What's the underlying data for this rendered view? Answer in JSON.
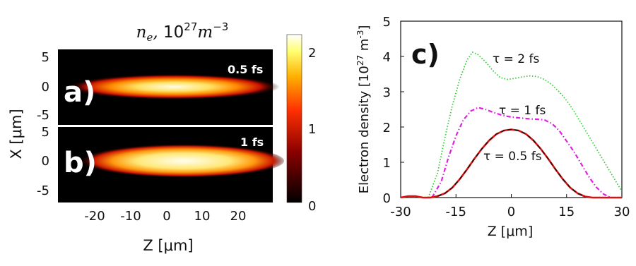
{
  "chart_data": [
    {
      "type": "heatmap",
      "title": "n_e, 10^27 m^-3",
      "title_parts": {
        "var": "n",
        "sub": "e",
        "sep": ", ",
        "base": "10",
        "exp": "27",
        "unit": "m",
        "unit_exp": "−3"
      },
      "xlabel": "Z [μm]",
      "ylabel": "X [μm]",
      "xlim": [
        -25,
        25
      ],
      "x_ticks": [
        "-20",
        "-10",
        "0",
        "10",
        "20"
      ],
      "colormap": "hot",
      "colorbar": {
        "ticks": [
          "0",
          "1",
          "2"
        ],
        "range": [
          0,
          2.2
        ]
      },
      "panels": [
        {
          "label": "a)",
          "annotation": "0.5 fs",
          "ylim": [
            -6,
            6
          ],
          "y_ticks": [
            "5",
            "0",
            "-5"
          ],
          "beam": {
            "z_start": -17,
            "z_end": 18,
            "half_width_um": 1.2,
            "peak": 2.2
          }
        },
        {
          "label": "b)",
          "annotation": "1 fs",
          "ylim": [
            -6,
            6
          ],
          "y_ticks": [
            "5",
            "0",
            "-5"
          ],
          "beam": {
            "z_start": -20,
            "z_end": 24,
            "half_width_um": 2.0,
            "peak": 2.2
          }
        }
      ]
    },
    {
      "type": "line",
      "panel_label": "c)",
      "xlabel": "Z [μm]",
      "ylabel_text": "Electron density [10",
      "ylabel_exp": "27",
      "ylabel_unit": " m",
      "ylabel_unit_exp": "-3",
      "ylabel_close": "]",
      "xlim": [
        -30,
        30
      ],
      "ylim": [
        0,
        5
      ],
      "x_ticks": [
        "-30",
        "-15",
        "0",
        "15",
        "30"
      ],
      "y_ticks": [
        "0",
        "1",
        "2",
        "3",
        "4",
        "5"
      ],
      "x_tick_values": [
        -30,
        -15,
        0,
        15,
        30
      ],
      "y_tick_values": [
        0,
        1,
        2,
        3,
        4,
        5
      ],
      "series": [
        {
          "name": "τ = 2 fs",
          "color": "#33cc33",
          "style": "dotted",
          "x": [
            -22.5,
            -20,
            -18,
            -16,
            -14,
            -12,
            -10.5,
            -9,
            -7,
            -5,
            -3,
            -1,
            1,
            3,
            5,
            7,
            9,
            11,
            13,
            15,
            17,
            19,
            21,
            23,
            25,
            27,
            29,
            30
          ],
          "y": [
            0,
            0.7,
            1.7,
            2.6,
            3.35,
            3.9,
            4.12,
            4.05,
            3.85,
            3.6,
            3.4,
            3.35,
            3.38,
            3.42,
            3.45,
            3.43,
            3.35,
            3.2,
            3.0,
            2.75,
            2.45,
            2.1,
            1.75,
            1.4,
            1.05,
            0.7,
            0.35,
            0.18
          ]
        },
        {
          "name": "τ = 1 fs",
          "color": "#e020e0",
          "style": "dashdot",
          "x": [
            -21.5,
            -19,
            -17,
            -15,
            -13,
            -11,
            -9,
            -7,
            -5,
            -3,
            -1,
            1,
            3,
            5,
            7,
            9,
            11,
            13,
            15,
            17,
            19,
            21,
            23,
            25,
            27
          ],
          "y": [
            0,
            0.45,
            1.15,
            1.75,
            2.2,
            2.45,
            2.55,
            2.5,
            2.42,
            2.35,
            2.3,
            2.27,
            2.25,
            2.23,
            2.22,
            2.2,
            2.1,
            1.9,
            1.6,
            1.3,
            0.95,
            0.6,
            0.3,
            0.1,
            0
          ]
        },
        {
          "name": "τ = 0.5 fs",
          "color": "#dd1111",
          "style": "solid",
          "x": [
            -30,
            -28,
            -26,
            -24,
            -22,
            -20,
            -18,
            -16,
            -14,
            -12,
            -10,
            -8,
            -6,
            -4,
            -2,
            0,
            2,
            4,
            6,
            8,
            10,
            12,
            14,
            16,
            18,
            20,
            22,
            24,
            26,
            28,
            30
          ],
          "y": [
            0,
            0.04,
            0.04,
            0,
            0,
            0.04,
            0.12,
            0.28,
            0.52,
            0.8,
            1.1,
            1.38,
            1.62,
            1.8,
            1.9,
            1.93,
            1.9,
            1.8,
            1.62,
            1.38,
            1.1,
            0.8,
            0.52,
            0.28,
            0.12,
            0.03,
            0,
            0,
            0,
            0,
            0
          ]
        },
        {
          "name": "",
          "color": "#111111",
          "style": "dashed",
          "x": [
            -20,
            -18,
            -16,
            -14,
            -12,
            -10,
            -8,
            -6,
            -4,
            -2,
            0,
            2,
            4,
            6,
            8,
            10,
            12,
            14,
            16,
            18,
            20
          ],
          "y": [
            0.04,
            0.12,
            0.28,
            0.52,
            0.8,
            1.1,
            1.38,
            1.62,
            1.8,
            1.9,
            1.93,
            1.9,
            1.8,
            1.62,
            1.38,
            1.1,
            0.8,
            0.52,
            0.28,
            0.12,
            0.03
          ]
        }
      ],
      "annotations": [
        {
          "text": "τ = 2 fs",
          "x": 3,
          "y": 3.9
        },
        {
          "text": "τ = 1 fs",
          "x": 3,
          "y": 2.45
        },
        {
          "text": "τ = 0.5 fs",
          "x": 3.5,
          "y": 1.15
        }
      ]
    }
  ]
}
